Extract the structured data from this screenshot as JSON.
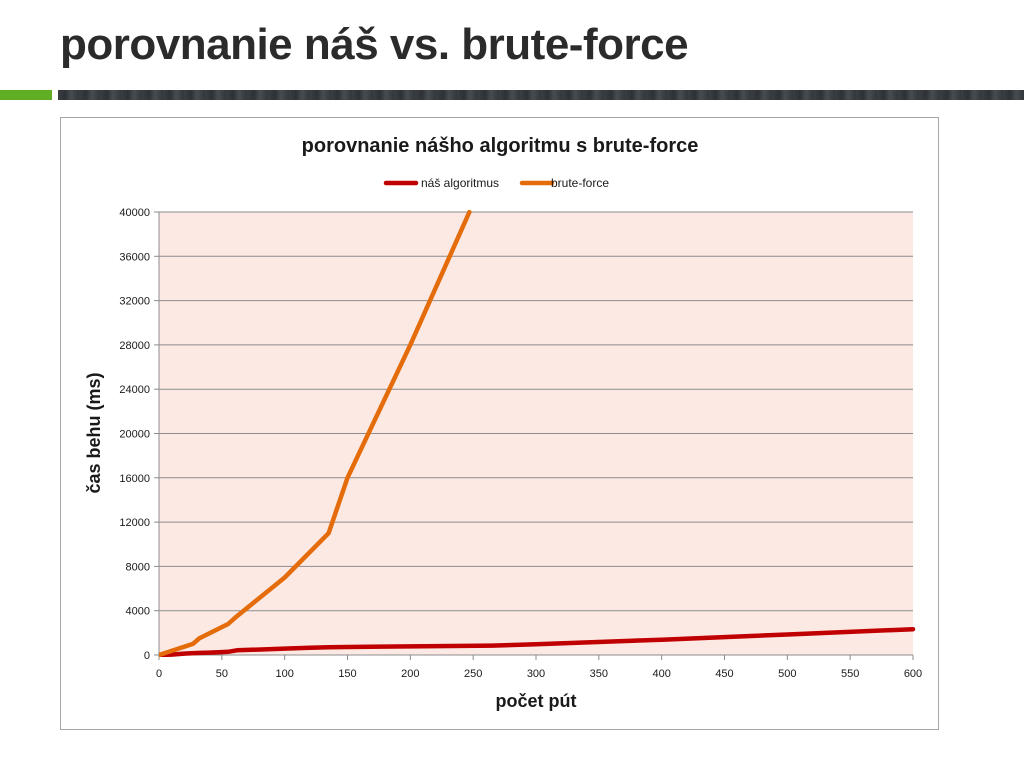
{
  "slide": {
    "title": "porovnanie náš vs. brute-force",
    "accent_color": "#5fae24"
  },
  "chart_data": {
    "type": "line",
    "title": "porovnanie nášho algoritmu s brute-force",
    "xlabel": "počet pút",
    "ylabel": "čas behu (ms)",
    "xlim": [
      0,
      600
    ],
    "ylim": [
      0,
      40000
    ],
    "xticks": [
      0,
      50,
      100,
      150,
      200,
      250,
      300,
      350,
      400,
      450,
      500,
      550,
      600
    ],
    "yticks": [
      0,
      4000,
      8000,
      12000,
      16000,
      20000,
      24000,
      28000,
      32000,
      36000,
      40000
    ],
    "grid": "horizontal",
    "legend_position": "top",
    "plot_background": "#fce9e4",
    "series": [
      {
        "name": "náš algoritmus",
        "color": "#c00000",
        "x": [
          0,
          10,
          20,
          30,
          40,
          50,
          55,
          62,
          100,
          120,
          135,
          150,
          200,
          265,
          300,
          400,
          500,
          600
        ],
        "y": [
          0,
          40,
          130,
          180,
          220,
          260,
          290,
          420,
          580,
          650,
          700,
          720,
          780,
          850,
          970,
          1380,
          1850,
          2330
        ]
      },
      {
        "name": "brute-force",
        "color": "#e46c0a",
        "x": [
          0,
          27,
          32,
          55,
          62,
          100,
          135,
          150,
          200,
          247
        ],
        "y": [
          0,
          1000,
          1500,
          2800,
          3500,
          7000,
          11000,
          16000,
          28000,
          40000
        ]
      }
    ]
  }
}
